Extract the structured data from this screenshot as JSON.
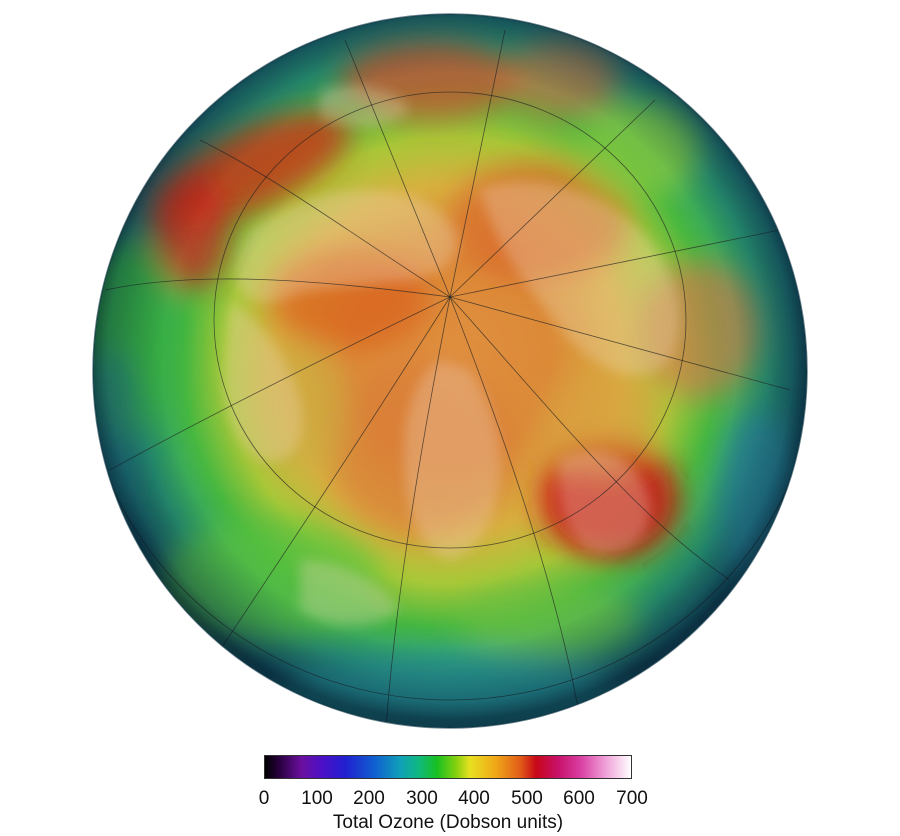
{
  "colorbar": {
    "title": "Total Ozone (Dobson units)",
    "ticks": [
      "0",
      "100",
      "200",
      "300",
      "400",
      "500",
      "600",
      "700"
    ],
    "range": [
      0,
      700
    ]
  },
  "map": {
    "projection": "orthographic north polar view",
    "colors": {
      "low_ozone": "#1a6a8a",
      "mid_ozone": "#35b838",
      "high_ozone": "#d88030",
      "peak_ozone": "#c01818",
      "land_overlay": "#f0d8c0",
      "graticule": "#222222"
    }
  }
}
